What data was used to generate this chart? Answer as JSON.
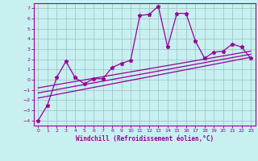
{
  "xlabel": "Windchill (Refroidissement éolien,°C)",
  "background_color": "#c8f0f0",
  "grid_color": "#a0c8c8",
  "line_color": "#990099",
  "xlim": [
    -0.5,
    23.5
  ],
  "ylim": [
    -4.5,
    7.5
  ],
  "xticks": [
    0,
    1,
    2,
    3,
    4,
    5,
    6,
    7,
    8,
    9,
    10,
    11,
    12,
    13,
    14,
    15,
    16,
    17,
    18,
    19,
    20,
    21,
    22,
    23
  ],
  "yticks": [
    -4,
    -3,
    -2,
    -1,
    0,
    1,
    2,
    3,
    4,
    5,
    6,
    7
  ],
  "zigzag_x": [
    0,
    1,
    2,
    3,
    4,
    5,
    6,
    7,
    8,
    9,
    10,
    11,
    12,
    13,
    14,
    15,
    16,
    17,
    18,
    19,
    20,
    21,
    22,
    23
  ],
  "zigzag_y": [
    -4,
    -2.5,
    0.2,
    1.8,
    0.2,
    -0.4,
    0.1,
    0.1,
    1.2,
    1.6,
    1.9,
    6.3,
    6.4,
    7.2,
    3.2,
    6.5,
    6.5,
    3.8,
    2.1,
    2.7,
    2.8,
    3.5,
    3.2,
    2.1
  ],
  "trend1_x": [
    0,
    23
  ],
  "trend1_y": [
    -1.8,
    2.2
  ],
  "trend2_x": [
    0,
    23
  ],
  "trend2_y": [
    -1.3,
    2.5
  ],
  "trend3_x": [
    0,
    23
  ],
  "trend3_y": [
    -0.8,
    2.8
  ]
}
